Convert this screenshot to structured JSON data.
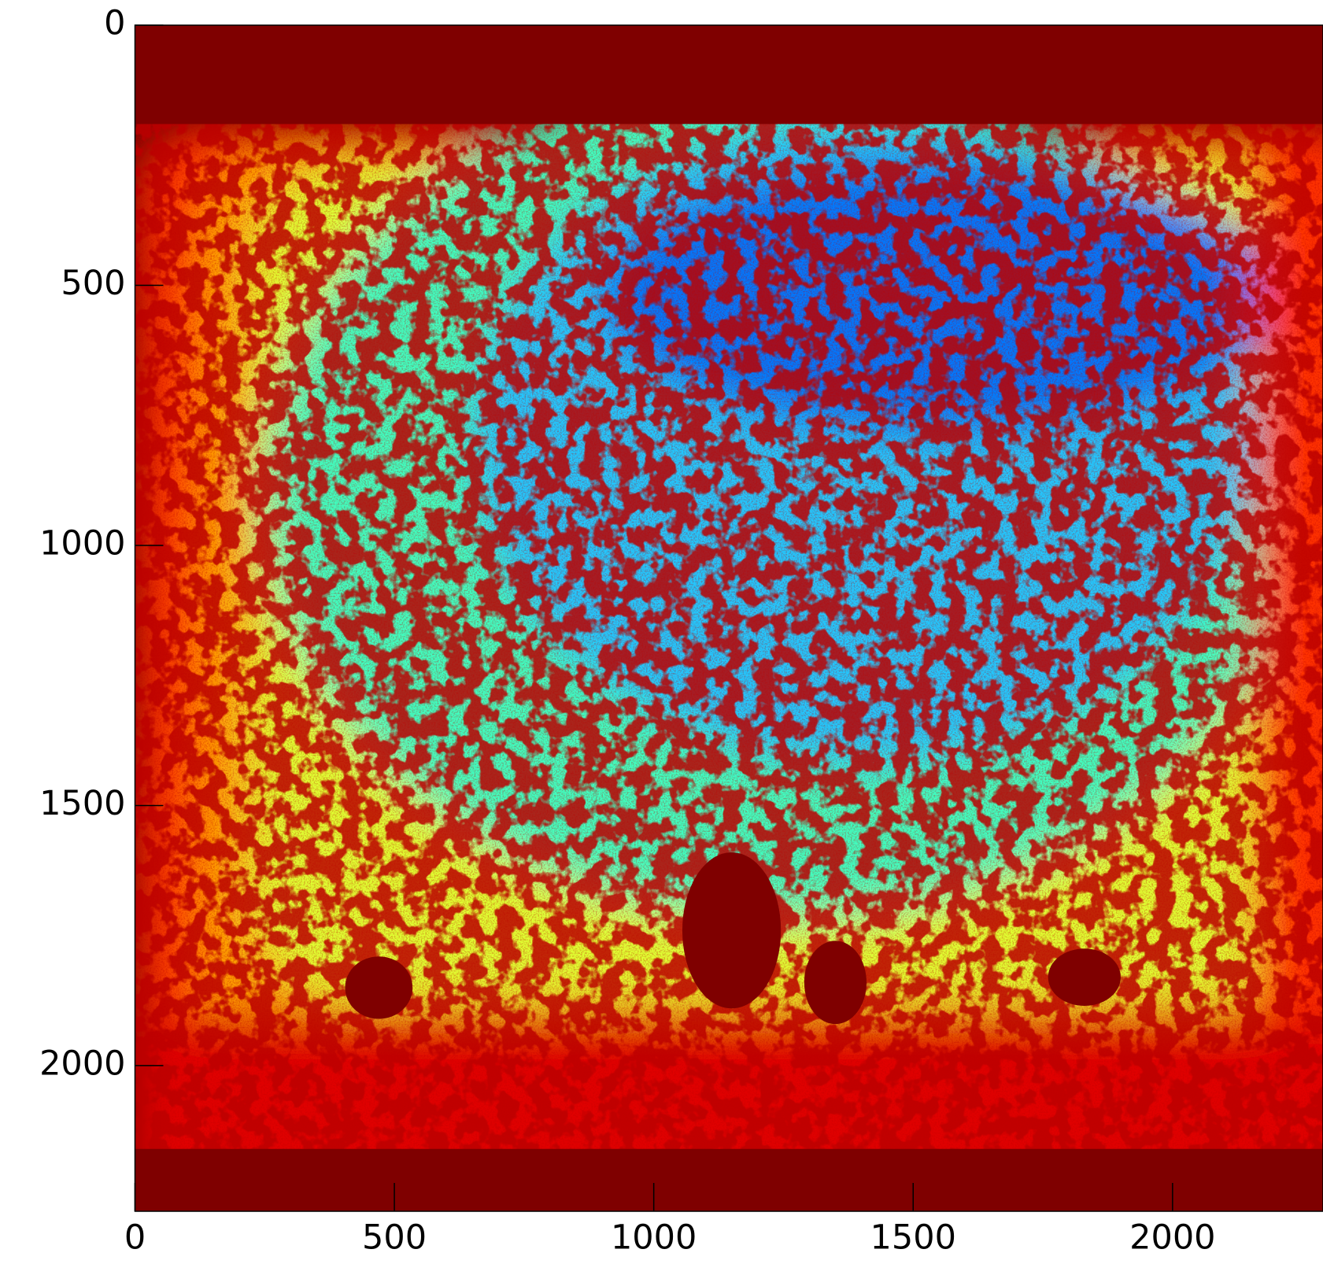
{
  "chart_data": {
    "type": "image",
    "xlim": [
      0,
      2290
    ],
    "ylim": [
      2280,
      0
    ],
    "xticks": [
      0,
      500,
      1000,
      1500,
      2000
    ],
    "yticks": [
      0,
      500,
      1000,
      1500,
      2000
    ]
  }
}
